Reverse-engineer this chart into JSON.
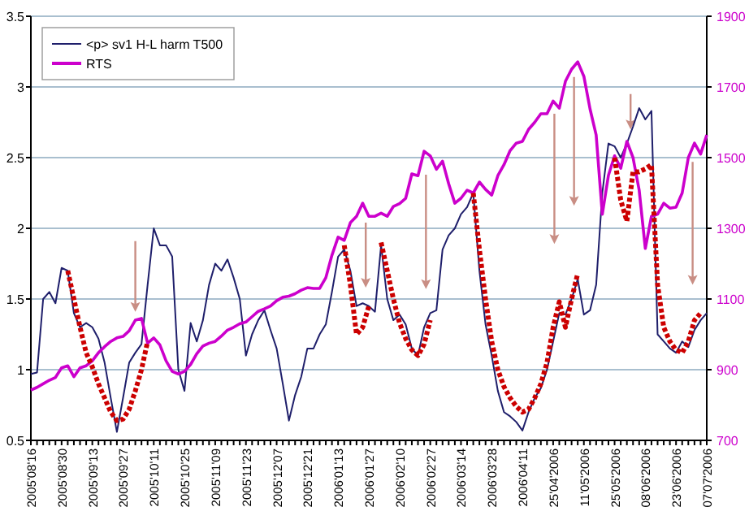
{
  "chart_data": {
    "type": "line",
    "categories": [
      "2005'08'16",
      null,
      null,
      null,
      null,
      "2005'08'30",
      null,
      null,
      null,
      null,
      "2005'09'13",
      null,
      null,
      null,
      null,
      "2005'09'27",
      null,
      null,
      null,
      null,
      "2005'10'11",
      null,
      null,
      null,
      null,
      "2005'10'25",
      null,
      null,
      null,
      null,
      "2005'11'09",
      null,
      null,
      null,
      null,
      "2005'11'23",
      null,
      null,
      null,
      null,
      "2005'12'07",
      null,
      null,
      null,
      null,
      "2005'12'21",
      null,
      null,
      null,
      null,
      "2006'01'13",
      null,
      null,
      null,
      null,
      "2006'01'27",
      null,
      null,
      null,
      null,
      "2006'02'10",
      null,
      null,
      null,
      null,
      "2006'02'27",
      null,
      null,
      null,
      null,
      "2006'03'14",
      null,
      null,
      null,
      null,
      "2006'03'28",
      null,
      null,
      null,
      null,
      "2006'04'11",
      null,
      null,
      null,
      null,
      "25'04'2006",
      null,
      null,
      null,
      null,
      "11'05'2006",
      null,
      null,
      null,
      null,
      "25'05'2006",
      null,
      null,
      null,
      null,
      "08'06'2006",
      null,
      null,
      null,
      null,
      "23'06'2006",
      null,
      null,
      null,
      null,
      "07'07'2006"
    ],
    "series": [
      {
        "name": "<p> sv1 H-L harm T500",
        "color": "#1f1f6b",
        "values": [
          0.97,
          0.98,
          1.5,
          1.55,
          1.47,
          1.72,
          1.7,
          1.4,
          1.3,
          1.33,
          1.3,
          1.22,
          1.05,
          0.8,
          0.56,
          0.8,
          1.05,
          1.12,
          1.18,
          1.6,
          2.0,
          1.88,
          1.88,
          1.8,
          1.0,
          0.85,
          1.33,
          1.2,
          1.35,
          1.6,
          1.75,
          1.7,
          1.78,
          1.65,
          1.5,
          1.1,
          1.25,
          1.35,
          1.42,
          1.28,
          1.15,
          0.9,
          0.64,
          0.82,
          0.95,
          1.15,
          1.15,
          1.25,
          1.32,
          1.55,
          1.8,
          1.85,
          1.7,
          1.45,
          1.47,
          1.45,
          1.41,
          1.88,
          1.5,
          1.35,
          1.39,
          1.32,
          1.15,
          1.1,
          1.3,
          1.4,
          1.42,
          1.85,
          1.95,
          2.0,
          2.1,
          2.15,
          2.25,
          1.7,
          1.32,
          1.1,
          0.85,
          0.7,
          0.67,
          0.63,
          0.57,
          0.7,
          0.8,
          0.87,
          1.0,
          1.2,
          1.4,
          1.39,
          1.5,
          1.64,
          1.39,
          1.42,
          1.6,
          2.25,
          2.6,
          2.58,
          2.5,
          2.6,
          2.72,
          2.85,
          2.77,
          2.83,
          1.25,
          1.2,
          1.15,
          1.12,
          1.2,
          1.16,
          1.28,
          1.35,
          1.4
        ]
      },
      {
        "name": "RTS",
        "color": "#cc00cc",
        "axis": "y2",
        "values": [
          842,
          850,
          860,
          870,
          878,
          905,
          911,
          880,
          905,
          911,
          925,
          948,
          965,
          980,
          990,
          994,
          1010,
          1040,
          1045,
          975,
          990,
          970,
          925,
          895,
          888,
          895,
          915,
          945,
          967,
          975,
          980,
          995,
          1012,
          1020,
          1030,
          1035,
          1050,
          1065,
          1072,
          1080,
          1095,
          1105,
          1108,
          1115,
          1125,
          1132,
          1130,
          1130,
          1160,
          1224,
          1275,
          1266,
          1316,
          1334,
          1371,
          1334,
          1334,
          1343,
          1334,
          1362,
          1370,
          1385,
          1454,
          1449,
          1518,
          1505,
          1467,
          1490,
          1426,
          1371,
          1385,
          1408,
          1400,
          1431,
          1410,
          1394,
          1449,
          1480,
          1520,
          1541,
          1546,
          1580,
          1600,
          1624,
          1624,
          1660,
          1640,
          1716,
          1750,
          1771,
          1730,
          1638,
          1564,
          1340,
          1450,
          1505,
          1470,
          1546,
          1500,
          1408,
          1243,
          1334,
          1340,
          1371,
          1357,
          1360,
          1400,
          1500,
          1541,
          1510,
          1564
        ]
      },
      {
        "color": "#cc0000",
        "line_style": "dotted",
        "values": [
          null,
          null,
          null,
          null,
          null,
          null,
          1.7,
          1.5,
          1.3,
          1.12,
          1.02,
          0.9,
          0.8,
          0.7,
          0.64,
          0.65,
          0.72,
          0.85,
          1.0,
          1.2,
          null,
          null,
          null,
          null,
          null,
          null,
          null,
          null,
          null,
          null,
          null,
          null,
          null,
          null,
          null,
          null,
          null,
          null,
          null,
          null,
          null,
          null,
          null,
          null,
          null,
          null,
          null,
          null,
          null,
          null,
          null,
          1.88,
          1.6,
          1.25,
          1.3,
          1.45,
          null,
          1.9,
          1.7,
          1.5,
          1.33,
          1.22,
          1.14,
          1.1,
          1.18,
          1.35,
          null,
          null,
          null,
          null,
          null,
          null,
          2.25,
          1.85,
          1.5,
          1.2,
          1.0,
          0.88,
          0.8,
          0.74,
          0.7,
          0.72,
          0.8,
          0.9,
          1.05,
          1.3,
          1.48,
          1.3,
          1.5,
          1.68,
          null,
          null,
          null,
          null,
          null,
          2.5,
          2.2,
          2.05,
          2.4,
          2.4,
          2.42,
          2.45,
          1.6,
          1.3,
          1.2,
          1.14,
          1.12,
          1.2,
          1.35,
          1.4,
          null
        ]
      }
    ],
    "ylim": [
      0.5,
      3.5
    ],
    "yticks": [
      0.5,
      1,
      1.5,
      2,
      2.5,
      3,
      3.5
    ],
    "y2lim": [
      700,
      1900
    ],
    "y2ticks": [
      700,
      900,
      1100,
      1300,
      1500,
      1700,
      1900
    ],
    "grid": "y",
    "legend": "top left"
  }
}
